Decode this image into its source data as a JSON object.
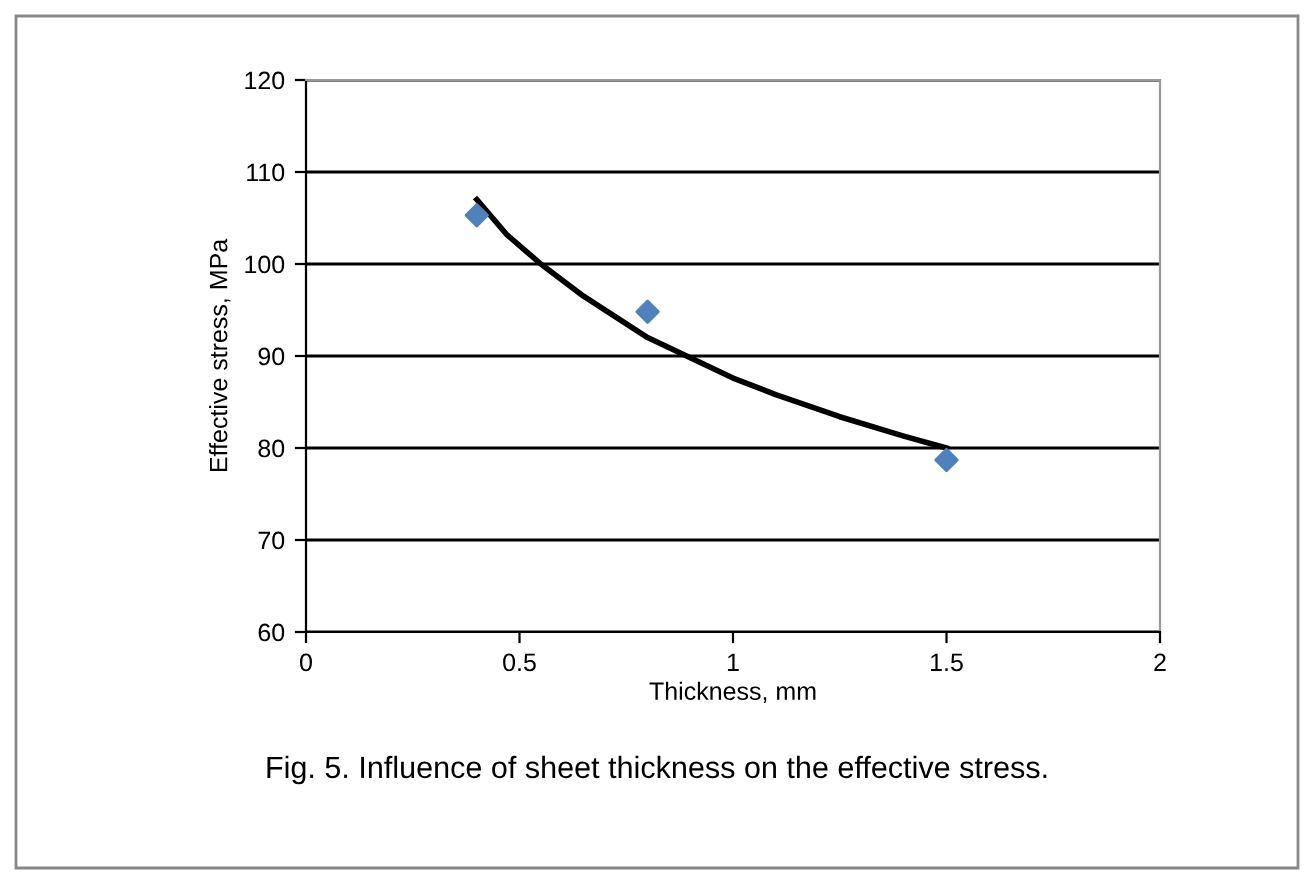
{
  "chart_data": {
    "type": "scatter",
    "xlabel": "Thickness, mm",
    "ylabel": "Effective stress, MPa",
    "annotations": [
      "Fig. 5. Influence of sheet thickness on the effective stress."
    ],
    "x": [
      0.4,
      0.8,
      1.5
    ],
    "series": [
      {
        "color": "#4f81bd",
        "marker": "diamond",
        "values": [
          105.3,
          94.8,
          78.7
        ]
      },
      {
        "type": "line",
        "color": "#000000",
        "marker": "none",
        "line_style": "solid",
        "x": [
          0.4,
          0.47,
          0.55,
          0.65,
          0.8,
          0.9,
          1.0,
          1.1,
          1.25,
          1.4,
          1.5
        ],
        "values": [
          107,
          103.2,
          100,
          96.5,
          92,
          89.8,
          87.6,
          85.8,
          83.4,
          81.3,
          80
        ]
      }
    ],
    "xlim": [
      0,
      2
    ],
    "xticks": [
      0,
      0.5,
      1,
      1.5,
      2
    ],
    "ylim": [
      60,
      120
    ],
    "yticks": [
      60,
      70,
      80,
      90,
      100,
      110,
      120
    ],
    "grid": "y",
    "legend": false
  }
}
